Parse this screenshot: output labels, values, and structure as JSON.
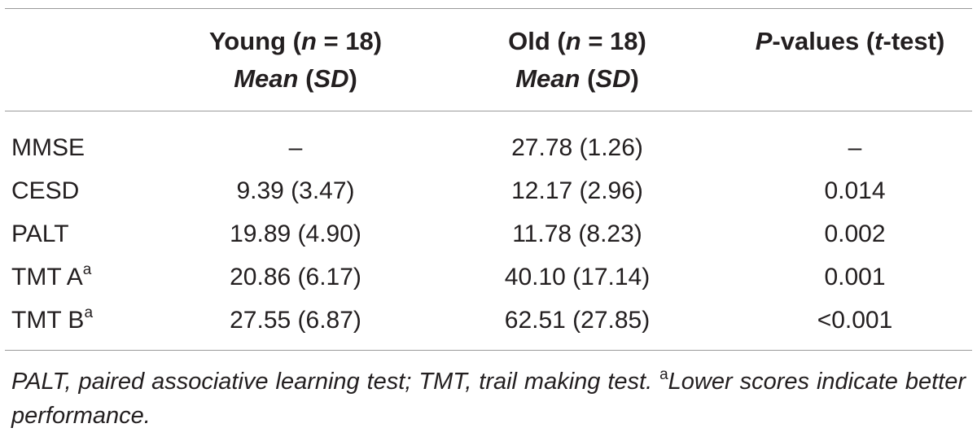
{
  "table": {
    "header": {
      "young": {
        "line1_prefix": "Young (",
        "line1_n": "n",
        "line1_suffix": " = 18)",
        "line2_a": "Mean",
        "line2_b": " (",
        "line2_c": "SD",
        "line2_d": ")"
      },
      "old": {
        "line1_prefix": "Old (",
        "line1_n": "n",
        "line1_suffix": " = 18)",
        "line2_a": "Mean",
        "line2_b": " (",
        "line2_c": "SD",
        "line2_d": ")"
      },
      "p": {
        "p": "P",
        "mid": "-values (",
        "t": "t",
        "end": "-test)"
      }
    },
    "rows": [
      {
        "label": "MMSE",
        "sup": "",
        "young": "–",
        "old": "27.78 (1.26)",
        "p": "–"
      },
      {
        "label": "CESD",
        "sup": "",
        "young": "9.39 (3.47)",
        "old": "12.17 (2.96)",
        "p": "0.014"
      },
      {
        "label": "PALT",
        "sup": "",
        "young": "19.89 (4.90)",
        "old": "11.78 (8.23)",
        "p": "0.002"
      },
      {
        "label": "TMT A",
        "sup": "a",
        "young": "20.86 (6.17)",
        "old": "40.10 (17.14)",
        "p": "0.001"
      },
      {
        "label": "TMT B",
        "sup": "a",
        "young": "27.55 (6.87)",
        "old": "62.51 (27.85)",
        "p": "<0.001"
      }
    ],
    "footnote": {
      "text": "PALT, paired associative learning test; TMT, trail making test. ",
      "sup": "a",
      "note": "Lower scores indicate better performance."
    }
  }
}
